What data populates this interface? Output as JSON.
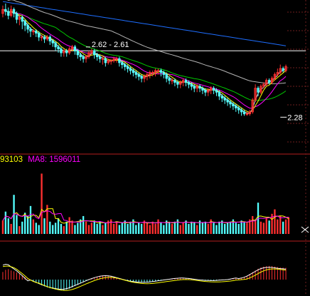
{
  "chart_data": {
    "type": "candlestick",
    "price_panel": {
      "y_range": [
        2.1,
        2.85
      ],
      "reference_line": 2.61,
      "annotations": [
        {
          "text": "2.62 - 2.61",
          "value": 2.615,
          "index": 32
        },
        {
          "text": "2.28",
          "value": 2.28,
          "index": 100
        }
      ],
      "candles": [
        [
          2.8,
          2.82,
          2.84,
          2.78
        ],
        [
          2.82,
          2.81,
          2.85,
          2.79
        ],
        [
          2.81,
          2.79,
          2.83,
          2.77
        ],
        [
          2.79,
          2.82,
          2.84,
          2.78
        ],
        [
          2.82,
          2.8,
          2.83,
          2.78
        ],
        [
          2.8,
          2.77,
          2.81,
          2.75
        ],
        [
          2.77,
          2.78,
          2.79,
          2.74
        ],
        [
          2.78,
          2.76,
          2.79,
          2.72
        ],
        [
          2.76,
          2.74,
          2.77,
          2.71
        ],
        [
          2.74,
          2.72,
          2.75,
          2.7
        ],
        [
          2.72,
          2.71,
          2.73,
          2.68
        ],
        [
          2.71,
          2.71,
          2.72,
          2.69
        ],
        [
          2.71,
          2.7,
          2.72,
          2.68
        ],
        [
          2.7,
          2.68,
          2.71,
          2.66
        ],
        [
          2.68,
          2.68,
          2.69,
          2.66
        ],
        [
          2.68,
          2.67,
          2.69,
          2.65
        ],
        [
          2.67,
          2.68,
          2.69,
          2.66
        ],
        [
          2.68,
          2.66,
          2.69,
          2.64
        ],
        [
          2.66,
          2.65,
          2.67,
          2.63
        ],
        [
          2.65,
          2.63,
          2.66,
          2.61
        ],
        [
          2.63,
          2.62,
          2.64,
          2.6
        ],
        [
          2.62,
          2.6,
          2.63,
          2.58
        ],
        [
          2.6,
          2.61,
          2.62,
          2.58
        ],
        [
          2.61,
          2.6,
          2.62,
          2.58
        ],
        [
          2.6,
          2.62,
          2.63,
          2.59
        ],
        [
          2.62,
          2.63,
          2.64,
          2.61
        ],
        [
          2.63,
          2.61,
          2.64,
          2.59
        ],
        [
          2.61,
          2.59,
          2.62,
          2.57
        ],
        [
          2.59,
          2.58,
          2.6,
          2.56
        ],
        [
          2.58,
          2.57,
          2.59,
          2.55
        ],
        [
          2.57,
          2.58,
          2.59,
          2.55
        ],
        [
          2.58,
          2.6,
          2.61,
          2.57
        ],
        [
          2.6,
          2.61,
          2.62,
          2.59
        ],
        [
          2.61,
          2.59,
          2.62,
          2.57
        ],
        [
          2.59,
          2.58,
          2.6,
          2.56
        ],
        [
          2.58,
          2.57,
          2.59,
          2.55
        ],
        [
          2.57,
          2.57,
          2.58,
          2.54
        ],
        [
          2.57,
          2.55,
          2.58,
          2.53
        ],
        [
          2.55,
          2.56,
          2.57,
          2.54
        ],
        [
          2.56,
          2.56,
          2.57,
          2.54
        ],
        [
          2.56,
          2.57,
          2.58,
          2.55
        ],
        [
          2.57,
          2.57,
          2.58,
          2.55
        ],
        [
          2.57,
          2.55,
          2.58,
          2.53
        ],
        [
          2.55,
          2.54,
          2.56,
          2.52
        ],
        [
          2.54,
          2.53,
          2.55,
          2.51
        ],
        [
          2.53,
          2.52,
          2.54,
          2.5
        ],
        [
          2.52,
          2.51,
          2.53,
          2.49
        ],
        [
          2.51,
          2.5,
          2.52,
          2.48
        ],
        [
          2.5,
          2.49,
          2.51,
          2.47
        ],
        [
          2.49,
          2.48,
          2.5,
          2.46
        ],
        [
          2.48,
          2.47,
          2.49,
          2.45
        ],
        [
          2.47,
          2.48,
          2.49,
          2.45
        ],
        [
          2.48,
          2.49,
          2.5,
          2.46
        ],
        [
          2.49,
          2.5,
          2.51,
          2.47
        ],
        [
          2.5,
          2.5,
          2.51,
          2.48
        ],
        [
          2.5,
          2.51,
          2.52,
          2.48
        ],
        [
          2.51,
          2.51,
          2.52,
          2.49
        ],
        [
          2.51,
          2.5,
          2.52,
          2.48
        ],
        [
          2.5,
          2.49,
          2.51,
          2.47
        ],
        [
          2.49,
          2.47,
          2.5,
          2.45
        ],
        [
          2.47,
          2.46,
          2.48,
          2.44
        ],
        [
          2.46,
          2.46,
          2.47,
          2.44
        ],
        [
          2.46,
          2.45,
          2.47,
          2.43
        ],
        [
          2.45,
          2.44,
          2.46,
          2.42
        ],
        [
          2.44,
          2.45,
          2.46,
          2.42
        ],
        [
          2.45,
          2.46,
          2.47,
          2.43
        ],
        [
          2.46,
          2.45,
          2.47,
          2.43
        ],
        [
          2.45,
          2.44,
          2.46,
          2.42
        ],
        [
          2.44,
          2.43,
          2.45,
          2.41
        ],
        [
          2.43,
          2.42,
          2.44,
          2.4
        ],
        [
          2.42,
          2.43,
          2.44,
          2.4
        ],
        [
          2.43,
          2.42,
          2.44,
          2.4
        ],
        [
          2.42,
          2.41,
          2.43,
          2.39
        ],
        [
          2.41,
          2.4,
          2.42,
          2.38
        ],
        [
          2.4,
          2.41,
          2.42,
          2.38
        ],
        [
          2.41,
          2.42,
          2.43,
          2.39
        ],
        [
          2.42,
          2.41,
          2.43,
          2.39
        ],
        [
          2.41,
          2.4,
          2.42,
          2.38
        ],
        [
          2.4,
          2.38,
          2.41,
          2.36
        ],
        [
          2.38,
          2.37,
          2.39,
          2.35
        ],
        [
          2.37,
          2.36,
          2.38,
          2.34
        ],
        [
          2.36,
          2.35,
          2.37,
          2.33
        ],
        [
          2.35,
          2.34,
          2.36,
          2.32
        ],
        [
          2.34,
          2.33,
          2.35,
          2.31
        ],
        [
          2.33,
          2.32,
          2.34,
          2.3
        ],
        [
          2.32,
          2.31,
          2.33,
          2.29
        ],
        [
          2.31,
          2.3,
          2.32,
          2.28
        ],
        [
          2.3,
          2.29,
          2.31,
          2.28
        ],
        [
          2.29,
          2.29,
          2.3,
          2.28
        ],
        [
          2.29,
          2.3,
          2.31,
          2.28
        ],
        [
          2.3,
          2.36,
          2.37,
          2.29
        ],
        [
          2.36,
          2.42,
          2.44,
          2.35
        ],
        [
          2.42,
          2.4,
          2.43,
          2.38
        ],
        [
          2.4,
          2.43,
          2.44,
          2.39
        ],
        [
          2.43,
          2.44,
          2.45,
          2.42
        ],
        [
          2.44,
          2.46,
          2.47,
          2.43
        ],
        [
          2.46,
          2.45,
          2.47,
          2.44
        ],
        [
          2.45,
          2.47,
          2.48,
          2.44
        ],
        [
          2.47,
          2.49,
          2.5,
          2.46
        ],
        [
          2.49,
          2.5,
          2.52,
          2.48
        ],
        [
          2.5,
          2.52,
          2.54,
          2.49
        ],
        [
          2.52,
          2.51,
          2.53,
          2.5
        ],
        [
          2.51,
          2.53,
          2.54,
          2.5
        ]
      ]
    },
    "volume_panel": {
      "legend": [
        {
          "text": "93103",
          "color": "#ffff00"
        },
        {
          "text": "MA8: 1596011",
          "color": "#ff00ff"
        }
      ],
      "y_range": [
        0,
        6
      ],
      "volumes": [
        1.2,
        2.0,
        1.4,
        0.9,
        3.5,
        1.7,
        0.7,
        1.1,
        1.9,
        1.6,
        2.5,
        1.3,
        1.0,
        0.8,
        5.4,
        1.4,
        2.6,
        1.1,
        0.8,
        1.0,
        1.4,
        0.9,
        0.7,
        1.1,
        1.5,
        1.2,
        0.8,
        1.0,
        1.3,
        1.6,
        1.1,
        0.8,
        1.0,
        1.2,
        0.9,
        1.1,
        0.8,
        1.0,
        1.2,
        1.3,
        0.9,
        1.1,
        0.8,
        1.0,
        1.2,
        0.9,
        1.1,
        1.3,
        0.8,
        1.0,
        0.9,
        1.2,
        1.0,
        0.8,
        1.1,
        0.9,
        1.3,
        1.0,
        0.8,
        1.2,
        1.0,
        0.9,
        1.1,
        1.3,
        0.8,
        1.0,
        1.2,
        0.9,
        1.1,
        1.0,
        0.8,
        1.2,
        1.0,
        1.1,
        0.9,
        1.3,
        1.0,
        0.8,
        1.1,
        1.2,
        0.9,
        1.0,
        1.1,
        1.3,
        1.0,
        0.9,
        1.2,
        1.1,
        1.0,
        1.3,
        1.6,
        1.2,
        2.8,
        1.1,
        1.0,
        1.4,
        1.2,
        1.8,
        2.2,
        1.3,
        1.6,
        1.1,
        1.3,
        1.5
      ]
    },
    "macd_panel": {
      "zero_line": 0,
      "y_range": [
        -1,
        1
      ],
      "histogram": [
        0.35,
        0.45,
        0.48,
        0.42,
        0.38,
        0.33,
        0.27,
        0.2,
        0.12,
        0.05,
        -0.02,
        -0.08,
        -0.14,
        -0.2,
        -0.26,
        -0.31,
        -0.36,
        -0.4,
        -0.43,
        -0.46,
        -0.48,
        -0.5,
        -0.49,
        -0.46,
        -0.42,
        -0.36,
        -0.3,
        -0.24,
        -0.18,
        -0.12,
        -0.06,
        0.0,
        0.05,
        0.1,
        0.14,
        0.17,
        0.19,
        0.2,
        0.19,
        0.17,
        0.14,
        0.1,
        0.06,
        0.02,
        -0.02,
        -0.05,
        -0.08,
        -0.1,
        -0.12,
        -0.13,
        -0.14,
        -0.14,
        -0.13,
        -0.12,
        -0.1,
        -0.08,
        -0.06,
        -0.04,
        -0.02,
        0.0,
        0.02,
        0.04,
        0.06,
        0.07,
        0.08,
        0.08,
        0.07,
        0.06,
        0.04,
        0.02,
        0.0,
        -0.02,
        -0.03,
        -0.04,
        -0.04,
        -0.05,
        -0.05,
        -0.04,
        -0.03,
        -0.02,
        -0.01,
        0.0,
        0.03,
        0.06,
        0.08,
        0.05,
        0.08,
        0.12,
        0.18,
        0.26,
        0.34,
        0.42,
        0.5,
        0.56,
        0.6,
        0.62,
        0.63,
        0.62,
        0.6,
        0.58,
        0.56,
        0.55,
        0.54
      ]
    },
    "colors": {
      "up": "#ff3030",
      "down": "#54ffff",
      "ma_white": "#e6e6e6",
      "ma_yellow": "#ffff00",
      "ma_magenta": "#ff00ff",
      "ma_green": "#00c800",
      "ma_gray": "#b4b4b4",
      "ma_blue": "#1e6eff",
      "separator": "#b41e1e",
      "ref_line": "#c8c8c8",
      "axis_dash": "#6e1e1e"
    }
  }
}
